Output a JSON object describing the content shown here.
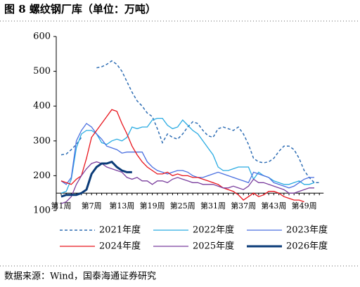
{
  "chart_data": {
    "type": "line",
    "title": "图 8 螺纹钢厂库（单位：万吨）",
    "source": "数据来源：Wind，国泰海通证券研究",
    "categories": [
      "第1周",
      null,
      null,
      null,
      null,
      null,
      "第7周",
      null,
      null,
      null,
      null,
      null,
      "第13周",
      null,
      null,
      null,
      null,
      null,
      "第19周",
      null,
      null,
      null,
      null,
      null,
      "第25周",
      null,
      null,
      null,
      null,
      null,
      "第31周",
      null,
      null,
      null,
      null,
      null,
      "第37周",
      null,
      null,
      null,
      null,
      null,
      "第43周",
      null,
      null,
      null,
      null,
      null,
      "第49周",
      null,
      null,
      null
    ],
    "ylim": [
      100,
      600
    ],
    "yticks": [
      100,
      200,
      300,
      400,
      500,
      600
    ],
    "x_axis_crosses": 150,
    "grid": false,
    "series": [
      {
        "name": "2021年度",
        "color": "#2E6DB4",
        "line_style": "dashed",
        "line_width": 1.5,
        "values": [
          260,
          262,
          275,
          290,
          310,
          null,
          null,
          510,
          513,
          520,
          530,
          520,
          500,
          470,
          440,
          415,
          400,
          380,
          370,
          335,
          295,
          320,
          310,
          305,
          320,
          340,
          355,
          350,
          330,
          315,
          310,
          335,
          340,
          335,
          330,
          340,
          320,
          290,
          250,
          240,
          237,
          240,
          250,
          270,
          285,
          285,
          275,
          250,
          215,
          195,
          180,
          180
        ]
      },
      {
        "name": "2022年度",
        "color": "#29ABE2",
        "line_style": "solid",
        "line_width": 1.3,
        "values": [
          150,
          155,
          190,
          280,
          320,
          330,
          330,
          320,
          295,
          290,
          300,
          305,
          300,
          310,
          340,
          335,
          340,
          340,
          360,
          365,
          365,
          345,
          335,
          340,
          360,
          345,
          330,
          320,
          300,
          280,
          260,
          225,
          215,
          215,
          220,
          225,
          225,
          225,
          190,
          210,
          200,
          195,
          185,
          180,
          175,
          175,
          180,
          185,
          175,
          175,
          180,
          null
        ]
      },
      {
        "name": "2023年度",
        "color": "#4A6FE0",
        "line_style": "solid",
        "line_width": 1.3,
        "values": [
          185,
          175,
          195,
          300,
          330,
          350,
          340,
          320,
          305,
          285,
          280,
          275,
          265,
          268,
          268,
          268,
          268,
          240,
          225,
          215,
          210,
          205,
          210,
          215,
          215,
          210,
          200,
          195,
          195,
          200,
          205,
          210,
          205,
          200,
          195,
          190,
          185,
          180,
          210,
          205,
          200,
          195,
          180,
          175,
          170,
          165,
          170,
          180,
          190,
          195,
          195,
          null
        ]
      },
      {
        "name": "2024年度",
        "color": "#E8141C",
        "line_style": "solid",
        "line_width": 1.3,
        "values": [
          185,
          180,
          175,
          190,
          200,
          250,
          310,
          330,
          350,
          370,
          390,
          385,
          350,
          320,
          285,
          260,
          240,
          225,
          215,
          205,
          205,
          210,
          200,
          205,
          200,
          200,
          195,
          195,
          190,
          185,
          180,
          175,
          165,
          160,
          155,
          145,
          130,
          140,
          150,
          140,
          145,
          155,
          155,
          150,
          140,
          135,
          130,
          130,
          125,
          null,
          null,
          null
        ]
      },
      {
        "name": "2025年度",
        "color": "#7B3F9E",
        "line_style": "solid",
        "line_width": 1.3,
        "values": [
          120,
          125,
          140,
          175,
          200,
          220,
          235,
          240,
          235,
          225,
          220,
          215,
          210,
          195,
          190,
          195,
          185,
          185,
          175,
          185,
          185,
          180,
          190,
          195,
          190,
          185,
          180,
          180,
          175,
          175,
          175,
          170,
          165,
          165,
          170,
          165,
          160,
          170,
          190,
          180,
          180,
          175,
          170,
          165,
          160,
          150,
          150,
          155,
          160,
          165,
          165,
          null
        ]
      },
      {
        "name": "2026年度",
        "color": "#0B3B78",
        "line_style": "solid",
        "line_width": 3,
        "values": [
          140,
          145,
          145,
          145,
          150,
          160,
          205,
          225,
          235,
          235,
          240,
          225,
          215,
          210,
          210,
          null,
          null,
          null,
          null,
          null,
          null,
          null,
          null,
          null,
          null,
          null,
          null,
          null,
          null,
          null,
          null,
          null,
          null,
          null,
          null,
          null,
          null,
          null,
          null,
          null,
          null,
          null,
          null,
          null,
          null,
          null,
          null,
          null,
          null,
          null,
          null,
          null
        ]
      }
    ]
  }
}
